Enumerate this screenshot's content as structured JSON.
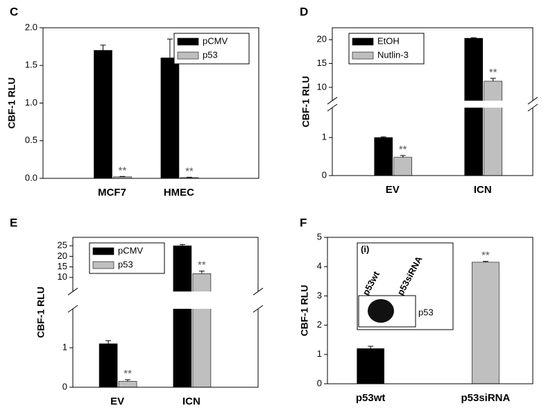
{
  "chart_data": [
    {
      "type": "bar",
      "label": "C",
      "ylabel": "CBF-1 RLU",
      "categories": [
        "MCF7",
        "HMEC"
      ],
      "series": [
        {
          "name": "pCMV",
          "color": "#000000",
          "values": [
            1.7,
            1.6
          ],
          "errors": [
            0.07,
            0.25
          ]
        },
        {
          "name": "p53",
          "color": "#bfbfbf",
          "values": [
            0.02,
            0.01
          ],
          "errors": [
            0.005,
            0.005
          ],
          "annotations": [
            "**",
            "**"
          ]
        }
      ],
      "ylim": [
        0,
        2
      ],
      "yticks": [
        {
          "value": 0,
          "label": "0.0"
        },
        {
          "value": 0.5,
          "label": "0.5"
        },
        {
          "value": 1,
          "label": "1.0"
        },
        {
          "value": 1.5,
          "label": "1.5"
        },
        {
          "value": 2,
          "label": "2.0"
        }
      ],
      "legend": "upper right"
    },
    {
      "type": "bar",
      "label": "D",
      "ylabel": "CBF-1 RLU",
      "categories": [
        "EV",
        "ICN"
      ],
      "series": [
        {
          "name": "EtOH",
          "color": "#000000",
          "values": [
            1.0,
            20.3
          ],
          "errors": [
            0.02,
            0.1
          ]
        },
        {
          "name": "Nutlin-3",
          "color": "#bfbfbf",
          "values": [
            0.48,
            11.3
          ],
          "errors": [
            0.05,
            0.6
          ],
          "annotations": [
            "**",
            "**"
          ]
        }
      ],
      "ylim": [
        0,
        22.5
      ],
      "ybreak": [
        1.75,
        7.5
      ],
      "yticks": [
        0,
        1,
        10,
        15,
        20
      ],
      "legend": "upper left"
    },
    {
      "type": "bar",
      "label": "E",
      "ylabel": "CBF-1 RLU",
      "categories": [
        "EV",
        "ICN"
      ],
      "series": [
        {
          "name": "pCMV",
          "color": "#000000",
          "values": [
            1.1,
            25
          ],
          "errors": [
            0.08,
            0.6
          ]
        },
        {
          "name": "p53",
          "color": "#bfbfbf",
          "values": [
            0.15,
            11.8
          ],
          "errors": [
            0.04,
            1.2
          ],
          "annotations": [
            "**",
            "**"
          ]
        }
      ],
      "ylim": [
        0,
        29
      ],
      "ybreak": [
        1.95,
        4
      ],
      "yticks": [
        0,
        1,
        10,
        15,
        20,
        25
      ],
      "legend": "upper left"
    },
    {
      "type": "bar",
      "label": "F",
      "ylabel": "CBF-1 RLU",
      "categories": [
        "p53wt",
        "p53siRNA"
      ],
      "values": [
        1.2,
        4.15
      ],
      "colors": [
        "#000000",
        "#bfbfbf"
      ],
      "errors": [
        0.08,
        0.03
      ],
      "annotations": [
        null,
        "**"
      ],
      "ylim": [
        0,
        5
      ],
      "yticks": [
        0,
        1,
        2,
        3,
        4,
        5
      ],
      "inset": {
        "label": "(i)",
        "lanes": [
          "p53wt",
          "p53siRNA"
        ],
        "band": "p53"
      }
    }
  ]
}
